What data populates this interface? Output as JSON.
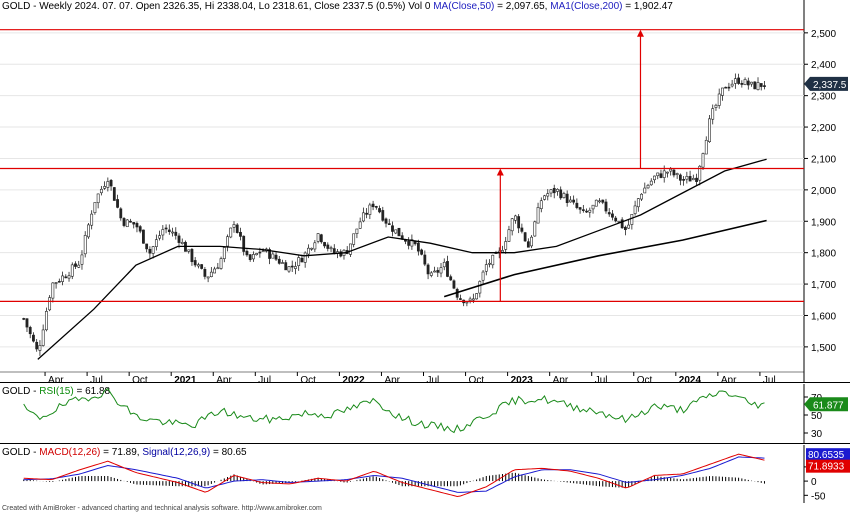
{
  "header": {
    "symbol": "GOLD",
    "ohlc": " - Weekly 2024. 07. 07. Open 2326.35, Hi 2338.04, Lo 2318.61, Close 2337.5 (0.5%) Vol 0 ",
    "ma50": "MA(Close,50)",
    "ma50_val": " = 2,097.65, ",
    "ma200": "MA1(Close,200)",
    "ma200_val": " = 1,902.47"
  },
  "rsi_header": {
    "symbol": "GOLD",
    "sep": " - ",
    "label": "RSI(15)",
    "val": " = 61.88"
  },
  "macd_header": {
    "symbol": "GOLD",
    "sep": " - ",
    "macd": "MACD(12,26)",
    "macd_val": " = 71.89, ",
    "signal": "Signal(12,26,9)",
    "signal_val": " = 80.65"
  },
  "footer": "Created with AmiBroker - advanced charting and technical analysis software. http://www.amibroker.com",
  "colors": {
    "resistance": "#e00000",
    "ma": "#000000",
    "rsi": "#1a8a1a",
    "macd": "#e00000",
    "signal": "#1a1ad0",
    "hist": "#000000",
    "candle": "#222222"
  },
  "chart_data": [
    {
      "type": "candlestick",
      "interval": "weekly",
      "ylim": [
        1420,
        2560
      ],
      "y_ticks": [
        "2,500",
        "2,400",
        "2,300",
        "2,200",
        "2,100",
        "2,000",
        "1,900",
        "1,800",
        "1,700",
        "1,600",
        "1,500"
      ],
      "x_ticks": [
        "Apr",
        "Jul",
        "Oct",
        "2021",
        "Apr",
        "Jul",
        "Oct",
        "2022",
        "Apr",
        "Jul",
        "Oct",
        "2023",
        "Apr",
        "Jul",
        "Oct",
        "2024",
        "Apr",
        "Jul"
      ],
      "last_price_label": "2,337.5",
      "close_path": [
        [
          "2020-02",
          1590
        ],
        [
          "2020-03",
          1480
        ],
        [
          "2020-04",
          1700
        ],
        [
          "2020-05",
          1730
        ],
        [
          "2020-06",
          1770
        ],
        [
          "2020-07",
          1960
        ],
        [
          "2020-08",
          2040
        ],
        [
          "2020-09",
          1900
        ],
        [
          "2020-10",
          1890
        ],
        [
          "2020-11",
          1800
        ],
        [
          "2020-12",
          1880
        ],
        [
          "2021-01",
          1850
        ],
        [
          "2021-02",
          1780
        ],
        [
          "2021-03",
          1720
        ],
        [
          "2021-04",
          1770
        ],
        [
          "2021-05",
          1900
        ],
        [
          "2021-06",
          1770
        ],
        [
          "2021-07",
          1810
        ],
        [
          "2021-08",
          1780
        ],
        [
          "2021-09",
          1750
        ],
        [
          "2021-10",
          1790
        ],
        [
          "2021-11",
          1860
        ],
        [
          "2021-12",
          1800
        ],
        [
          "2022-01",
          1800
        ],
        [
          "2022-02",
          1900
        ],
        [
          "2022-03",
          1960
        ],
        [
          "2022-04",
          1890
        ],
        [
          "2022-05",
          1850
        ],
        [
          "2022-06",
          1820
        ],
        [
          "2022-07",
          1720
        ],
        [
          "2022-08",
          1760
        ],
        [
          "2022-09",
          1660
        ],
        [
          "2022-10",
          1640
        ],
        [
          "2022-11",
          1760
        ],
        [
          "2022-12",
          1800
        ],
        [
          "2023-01",
          1920
        ],
        [
          "2023-02",
          1820
        ],
        [
          "2023-03",
          1980
        ],
        [
          "2023-04",
          2000
        ],
        [
          "2023-05",
          1960
        ],
        [
          "2023-06",
          1920
        ],
        [
          "2023-07",
          1960
        ],
        [
          "2023-08",
          1920
        ],
        [
          "2023-09",
          1870
        ],
        [
          "2023-10",
          1990
        ],
        [
          "2023-11",
          2040
        ],
        [
          "2023-12",
          2060
        ],
        [
          "2024-01",
          2030
        ],
        [
          "2024-02",
          2040
        ],
        [
          "2024-03",
          2230
        ],
        [
          "2024-04",
          2330
        ],
        [
          "2024-05",
          2350
        ],
        [
          "2024-06",
          2330
        ],
        [
          "2024-07",
          2337.5
        ]
      ],
      "ma50_path": [
        [
          "2020-03",
          1460
        ],
        [
          "2020-07",
          1620
        ],
        [
          "2020-10",
          1760
        ],
        [
          "2021-01",
          1820
        ],
        [
          "2021-04",
          1820
        ],
        [
          "2021-07",
          1810
        ],
        [
          "2021-10",
          1790
        ],
        [
          "2022-01",
          1800
        ],
        [
          "2022-04",
          1850
        ],
        [
          "2022-07",
          1830
        ],
        [
          "2022-10",
          1800
        ],
        [
          "2023-01",
          1800
        ],
        [
          "2023-04",
          1820
        ],
        [
          "2023-07",
          1870
        ],
        [
          "2023-10",
          1920
        ],
        [
          "2024-01",
          1990
        ],
        [
          "2024-04",
          2060
        ],
        [
          "2024-07",
          2097.65
        ]
      ],
      "ma200_path": [
        [
          "2022-08",
          1660
        ],
        [
          "2023-01",
          1730
        ],
        [
          "2023-07",
          1790
        ],
        [
          "2024-01",
          1840
        ],
        [
          "2024-07",
          1902.47
        ]
      ],
      "horizontal_lines": [
        2510,
        2068,
        1645
      ],
      "trendline": [
        [
          "2022-08",
          1660
        ],
        [
          "2024-07",
          1902.47
        ]
      ],
      "projection_arrows": [
        {
          "date": "2022-12",
          "from": 1645,
          "to": 2068
        },
        {
          "date": "2023-10",
          "from": 2068,
          "to": 2510
        }
      ]
    },
    {
      "type": "line",
      "name": "RSI(15)",
      "ylim": [
        20,
        80
      ],
      "y_ticks": [
        "70",
        "50",
        "30"
      ],
      "last_value_label": "61.877",
      "path": [
        [
          "2020-02",
          58
        ],
        [
          "2020-03",
          46
        ],
        [
          "2020-05",
          62
        ],
        [
          "2020-07",
          72
        ],
        [
          "2020-08",
          76
        ],
        [
          "2020-10",
          48
        ],
        [
          "2020-12",
          42
        ],
        [
          "2021-02",
          38
        ],
        [
          "2021-04",
          55
        ],
        [
          "2021-06",
          46
        ],
        [
          "2021-08",
          45
        ],
        [
          "2021-10",
          52
        ],
        [
          "2021-12",
          50
        ],
        [
          "2022-03",
          66
        ],
        [
          "2022-05",
          46
        ],
        [
          "2022-07",
          38
        ],
        [
          "2022-09",
          34
        ],
        [
          "2022-11",
          50
        ],
        [
          "2023-01",
          66
        ],
        [
          "2023-03",
          68
        ],
        [
          "2023-05",
          60
        ],
        [
          "2023-07",
          54
        ],
        [
          "2023-09",
          44
        ],
        [
          "2023-11",
          60
        ],
        [
          "2024-01",
          56
        ],
        [
          "2024-03",
          72
        ],
        [
          "2024-04",
          76
        ],
        [
          "2024-06",
          62
        ],
        [
          "2024-07",
          61.877
        ]
      ]
    },
    {
      "type": "line",
      "name": "MACD(12,26)",
      "ylim": [
        -70,
        120
      ],
      "y_ticks": [
        "50",
        "0",
        "-50"
      ],
      "last_value_labels": [
        "80.6535",
        "71.8933"
      ],
      "series": [
        {
          "name": "MACD(12,26)",
          "path": [
            [
              "2020-02",
              10
            ],
            [
              "2020-04",
              5
            ],
            [
              "2020-06",
              40
            ],
            [
              "2020-08",
              70
            ],
            [
              "2020-10",
              30
            ],
            [
              "2021-01",
              -5
            ],
            [
              "2021-03",
              -40
            ],
            [
              "2021-05",
              20
            ],
            [
              "2021-07",
              -5
            ],
            [
              "2021-09",
              -10
            ],
            [
              "2021-11",
              10
            ],
            [
              "2022-01",
              0
            ],
            [
              "2022-03",
              35
            ],
            [
              "2022-05",
              -5
            ],
            [
              "2022-07",
              -30
            ],
            [
              "2022-09",
              -55
            ],
            [
              "2022-11",
              -20
            ],
            [
              "2023-01",
              40
            ],
            [
              "2023-03",
              45
            ],
            [
              "2023-05",
              35
            ],
            [
              "2023-07",
              10
            ],
            [
              "2023-09",
              -25
            ],
            [
              "2023-11",
              20
            ],
            [
              "2024-01",
              25
            ],
            [
              "2024-03",
              60
            ],
            [
              "2024-05",
              95
            ],
            [
              "2024-07",
              71.89
            ]
          ]
        },
        {
          "name": "Signal(12,26,9)",
          "path": [
            [
              "2020-02",
              5
            ],
            [
              "2020-04",
              8
            ],
            [
              "2020-06",
              25
            ],
            [
              "2020-08",
              55
            ],
            [
              "2020-10",
              40
            ],
            [
              "2021-01",
              10
            ],
            [
              "2021-03",
              -25
            ],
            [
              "2021-05",
              0
            ],
            [
              "2021-07",
              5
            ],
            [
              "2021-09",
              -5
            ],
            [
              "2021-11",
              0
            ],
            [
              "2022-01",
              5
            ],
            [
              "2022-03",
              20
            ],
            [
              "2022-05",
              10
            ],
            [
              "2022-07",
              -15
            ],
            [
              "2022-09",
              -40
            ],
            [
              "2022-11",
              -35
            ],
            [
              "2023-01",
              15
            ],
            [
              "2023-03",
              40
            ],
            [
              "2023-05",
              40
            ],
            [
              "2023-07",
              25
            ],
            [
              "2023-09",
              -5
            ],
            [
              "2023-11",
              5
            ],
            [
              "2024-01",
              20
            ],
            [
              "2024-03",
              45
            ],
            [
              "2024-05",
              85
            ],
            [
              "2024-07",
              80.65
            ]
          ]
        }
      ]
    }
  ]
}
